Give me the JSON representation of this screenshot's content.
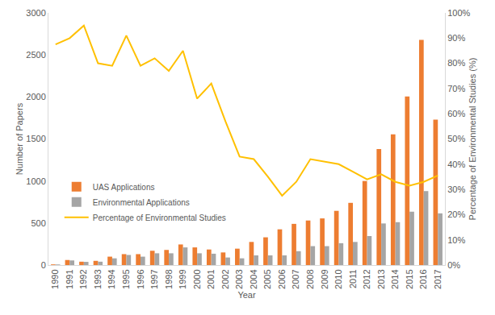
{
  "chart_data": {
    "type": "bar",
    "xlabel": "Year",
    "ylabel": "Number of Papers",
    "y2label": "Percentage of Environmental Studies (%)",
    "categories": [
      "1990",
      "1991",
      "1992",
      "1993",
      "1994",
      "1995",
      "1996",
      "1997",
      "1998",
      "1999",
      "2000",
      "2001",
      "2002",
      "2003",
      "2004",
      "2005",
      "2006",
      "2007",
      "2008",
      "2009",
      "2010",
      "2011",
      "2012",
      "2013",
      "2014",
      "2015",
      "2016",
      "2017"
    ],
    "series": [
      {
        "name": "UAS Applications",
        "type": "bar",
        "color": "#ED7D31",
        "values": [
          8,
          60,
          40,
          50,
          100,
          130,
          130,
          170,
          180,
          245,
          210,
          185,
          150,
          195,
          275,
          330,
          425,
          490,
          530,
          555,
          645,
          740,
          1000,
          1380,
          1555,
          2005,
          2680,
          1730
        ]
      },
      {
        "name": "Environmental Applications",
        "type": "bar",
        "color": "#A5A5A5",
        "values": [
          7,
          55,
          38,
          40,
          80,
          120,
          100,
          140,
          140,
          210,
          140,
          135,
          90,
          80,
          115,
          115,
          115,
          165,
          225,
          225,
          260,
          275,
          345,
          495,
          510,
          635,
          880,
          615
        ]
      },
      {
        "name": "Percentage of Environmental Studies",
        "type": "line",
        "axis": "y2",
        "color": "#FFC000",
        "values": [
          87.5,
          90,
          95,
          80,
          79,
          91,
          79,
          82,
          77,
          85,
          66,
          72,
          57,
          43,
          42,
          35,
          27.5,
          33,
          42,
          41,
          40,
          37,
          34,
          36,
          33,
          31.5,
          33,
          35.5
        ]
      }
    ],
    "ylim": [
      0,
      3000
    ],
    "yticks": [
      0,
      500,
      1000,
      1500,
      2000,
      2500,
      3000
    ],
    "y2lim": [
      0,
      100
    ],
    "y2ticks": [
      {
        "value": 0,
        "label": "0%"
      },
      {
        "value": 10,
        "label": "10%"
      },
      {
        "value": 20,
        "label": "20%"
      },
      {
        "value": 30,
        "label": "30%"
      },
      {
        "value": 40,
        "label": "40%"
      },
      {
        "value": 50,
        "label": "50%"
      },
      {
        "value": 60,
        "label": "60%"
      },
      {
        "value": 70,
        "label": "70%"
      },
      {
        "value": 80,
        "label": "80%"
      },
      {
        "value": 90,
        "label": "90%"
      },
      {
        "value": 100,
        "label": "100%"
      }
    ],
    "grid": false,
    "legend": "left"
  }
}
